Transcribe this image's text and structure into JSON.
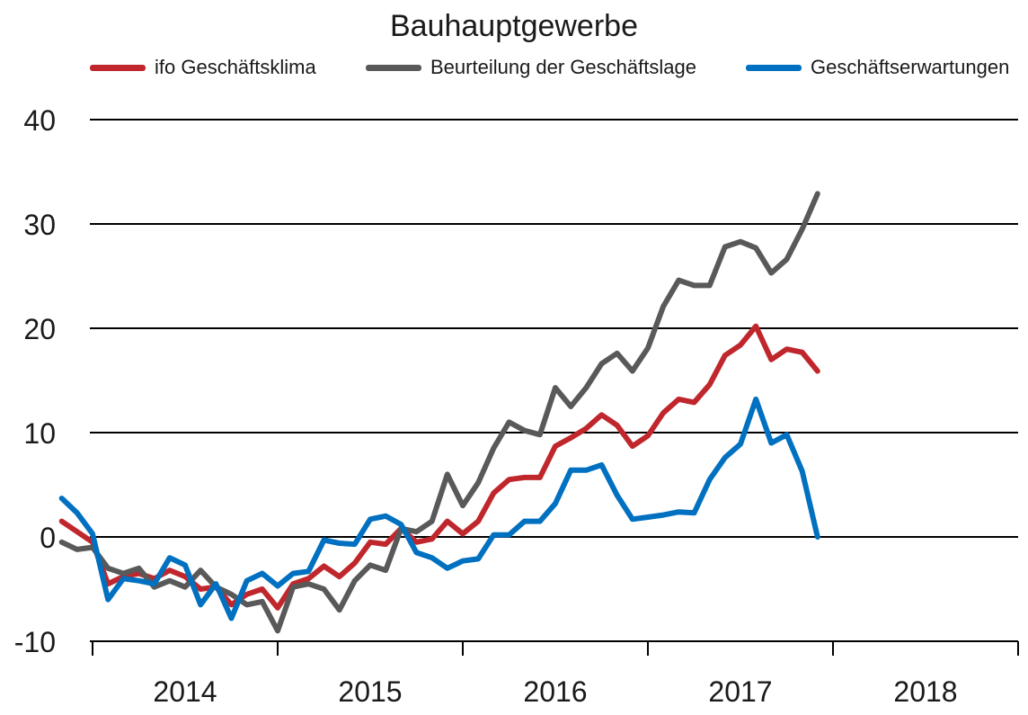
{
  "chart_data": {
    "type": "line",
    "title": "Bauhauptgewerbe",
    "xlabel": "",
    "ylabel": "",
    "ylim": [
      -10,
      40
    ],
    "yticks": [
      "40",
      "30",
      "20",
      "10",
      "0",
      "-10"
    ],
    "year_labels": [
      "2014",
      "2015",
      "2016",
      "2017",
      "2018"
    ],
    "x_start": "2013-11",
    "x_end": "2018-12",
    "grid": true,
    "legend_position": "top",
    "series": [
      {
        "name": "ifo Geschäftsklima",
        "color": "#c0272d",
        "values": [
          1.5,
          0.5,
          -0.5,
          -4.5,
          -3.8,
          -3.5,
          -4.0,
          -3.2,
          -3.8,
          -5.0,
          -4.8,
          -6.5,
          -5.5,
          -5.0,
          -6.8,
          -4.5,
          -4.0,
          -2.8,
          -3.8,
          -2.5,
          -0.5,
          -0.7,
          0.8,
          -0.5,
          -0.2,
          1.5,
          0.3,
          1.5,
          4.2,
          5.5,
          5.7,
          5.7,
          8.7,
          9.5,
          10.4,
          11.7,
          10.7,
          8.7,
          9.7,
          11.9,
          13.2,
          12.9,
          14.6,
          17.4,
          18.4,
          20.2,
          17.0,
          18.0,
          17.7,
          15.9
        ]
      },
      {
        "name": "Beurteilung der Geschäftslage",
        "color": "#595959",
        "values": [
          -0.5,
          -1.2,
          -1.0,
          -3.0,
          -3.5,
          -3.0,
          -4.8,
          -4.2,
          -4.8,
          -3.2,
          -4.8,
          -5.5,
          -6.5,
          -6.2,
          -9.0,
          -4.8,
          -4.5,
          -5.0,
          -7.0,
          -4.2,
          -2.7,
          -3.2,
          0.8,
          0.5,
          1.5,
          6.0,
          3.0,
          5.2,
          8.5,
          11.0,
          10.2,
          9.8,
          14.3,
          12.5,
          14.3,
          16.6,
          17.6,
          15.9,
          18.1,
          22.1,
          24.6,
          24.1,
          24.1,
          27.8,
          28.3,
          27.7,
          25.3,
          26.6,
          29.5,
          32.9
        ]
      },
      {
        "name": "Geschäftserwartungen",
        "color": "#0070c0",
        "values": [
          3.7,
          2.3,
          0.3,
          -6.0,
          -4.0,
          -4.2,
          -4.5,
          -2.0,
          -2.7,
          -6.5,
          -4.5,
          -7.8,
          -4.2,
          -3.5,
          -4.7,
          -3.5,
          -3.3,
          -0.3,
          -0.6,
          -0.7,
          1.7,
          2.0,
          1.2,
          -1.5,
          -2.0,
          -3.0,
          -2.3,
          -2.1,
          0.2,
          0.2,
          1.5,
          1.5,
          3.2,
          6.4,
          6.4,
          6.9,
          4.0,
          1.7,
          1.9,
          2.1,
          2.4,
          2.3,
          5.5,
          7.6,
          8.9,
          13.2,
          9.0,
          9.8,
          6.3,
          0.0
        ]
      }
    ]
  }
}
